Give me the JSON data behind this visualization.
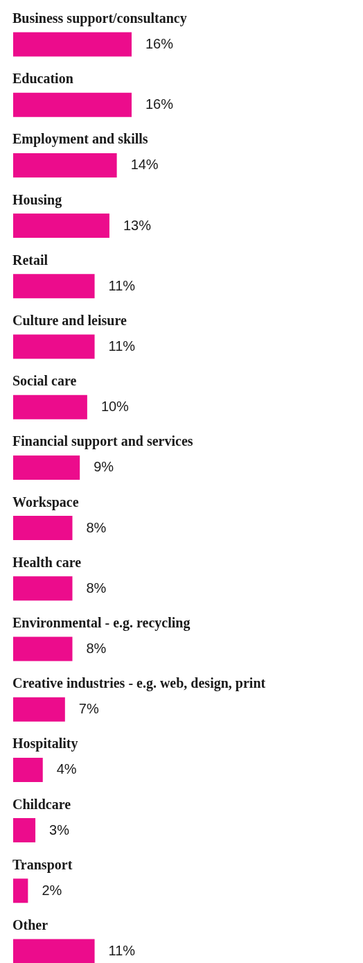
{
  "chart_data": {
    "type": "bar",
    "orientation": "horizontal",
    "color": "#ec0c8c",
    "categories": [
      "Business support/consultancy",
      "Education",
      "Employment and skills",
      "Housing",
      "Retail",
      "Culture and leisure",
      "Social care",
      "Financial support and services",
      "Workspace",
      "Health care",
      "Environmental - e.g. recycling",
      "Creative industries - e.g. web, design, print",
      "Hospitality",
      "Childcare",
      "Transport",
      "Other"
    ],
    "values": [
      16,
      16,
      14,
      13,
      11,
      11,
      10,
      9,
      8,
      8,
      8,
      7,
      4,
      3,
      2,
      11
    ],
    "value_labels": [
      "16%",
      "16%",
      "14%",
      "13%",
      "11%",
      "11%",
      "10%",
      "9%",
      "8%",
      "8%",
      "8%",
      "7%",
      "4%",
      "3%",
      "2%",
      "11%"
    ]
  }
}
